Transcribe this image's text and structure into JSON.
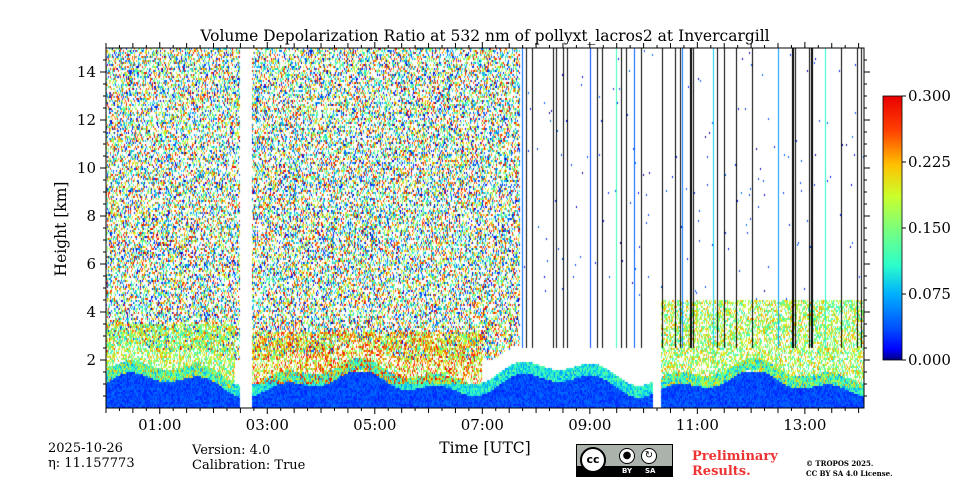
{
  "chart_data": {
    "type": "heatmap",
    "title": "Volume Depolarization Ratio at 532 nm of pollyxt_lacros2 at Invercargill",
    "xlabel": "Time [UTC]",
    "ylabel": "Height [km]",
    "x_range_hours": [
      0.0,
      14.1
    ],
    "xticks": [
      "01:00",
      "03:00",
      "05:00",
      "07:00",
      "09:00",
      "11:00",
      "13:00"
    ],
    "xtick_values_hours": [
      1,
      3,
      5,
      7,
      9,
      11,
      13
    ],
    "ylim": [
      0,
      15
    ],
    "yticks": [
      2,
      4,
      6,
      8,
      10,
      12,
      14
    ],
    "colorbar": {
      "range": [
        0.0,
        0.3
      ],
      "ticks": [
        "0.000",
        "0.075",
        "0.150",
        "0.225",
        "0.300"
      ],
      "tick_values": [
        0.0,
        0.075,
        0.15,
        0.225,
        0.3
      ],
      "colormap": "jet"
    },
    "data_gaps_hours": [
      [
        2.5,
        2.72
      ],
      [
        10.18,
        10.33
      ]
    ],
    "features": [
      {
        "kind": "boundary layer",
        "time_hours": [
          0.0,
          14.1
        ],
        "height_km": [
          0.0,
          1.5
        ],
        "depol": 0.02
      },
      {
        "kind": "depolarizing layer",
        "time_hours": [
          0.0,
          2.4
        ],
        "height_km": [
          0.8,
          3.5
        ],
        "depol": 0.2
      },
      {
        "kind": "depolarizing layer",
        "time_hours": [
          2.7,
          7.0
        ],
        "height_km": [
          1.0,
          3.2
        ],
        "depol": 0.25
      },
      {
        "kind": "depolarizing layer",
        "time_hours": [
          10.3,
          14.1
        ],
        "height_km": [
          0.8,
          4.5
        ],
        "depol": 0.2
      },
      {
        "kind": "noise region",
        "time_hours": [
          0.0,
          7.7
        ],
        "height_km": [
          2.0,
          15.0
        ],
        "depol": "noise"
      }
    ]
  },
  "info": {
    "date": "2025-10-26",
    "eta": "η: 11.157773",
    "version": "Version: 4.0",
    "calibration": "Calibration: True"
  },
  "branding": {
    "preliminary_line1": "Preliminary",
    "preliminary_line2": "Results.",
    "license_line1": "© TROPOS 2025.",
    "license_line2": "CC BY SA 4.0 License.",
    "cc_text": "cc",
    "by_text": "BY",
    "sa_text": "SA"
  }
}
